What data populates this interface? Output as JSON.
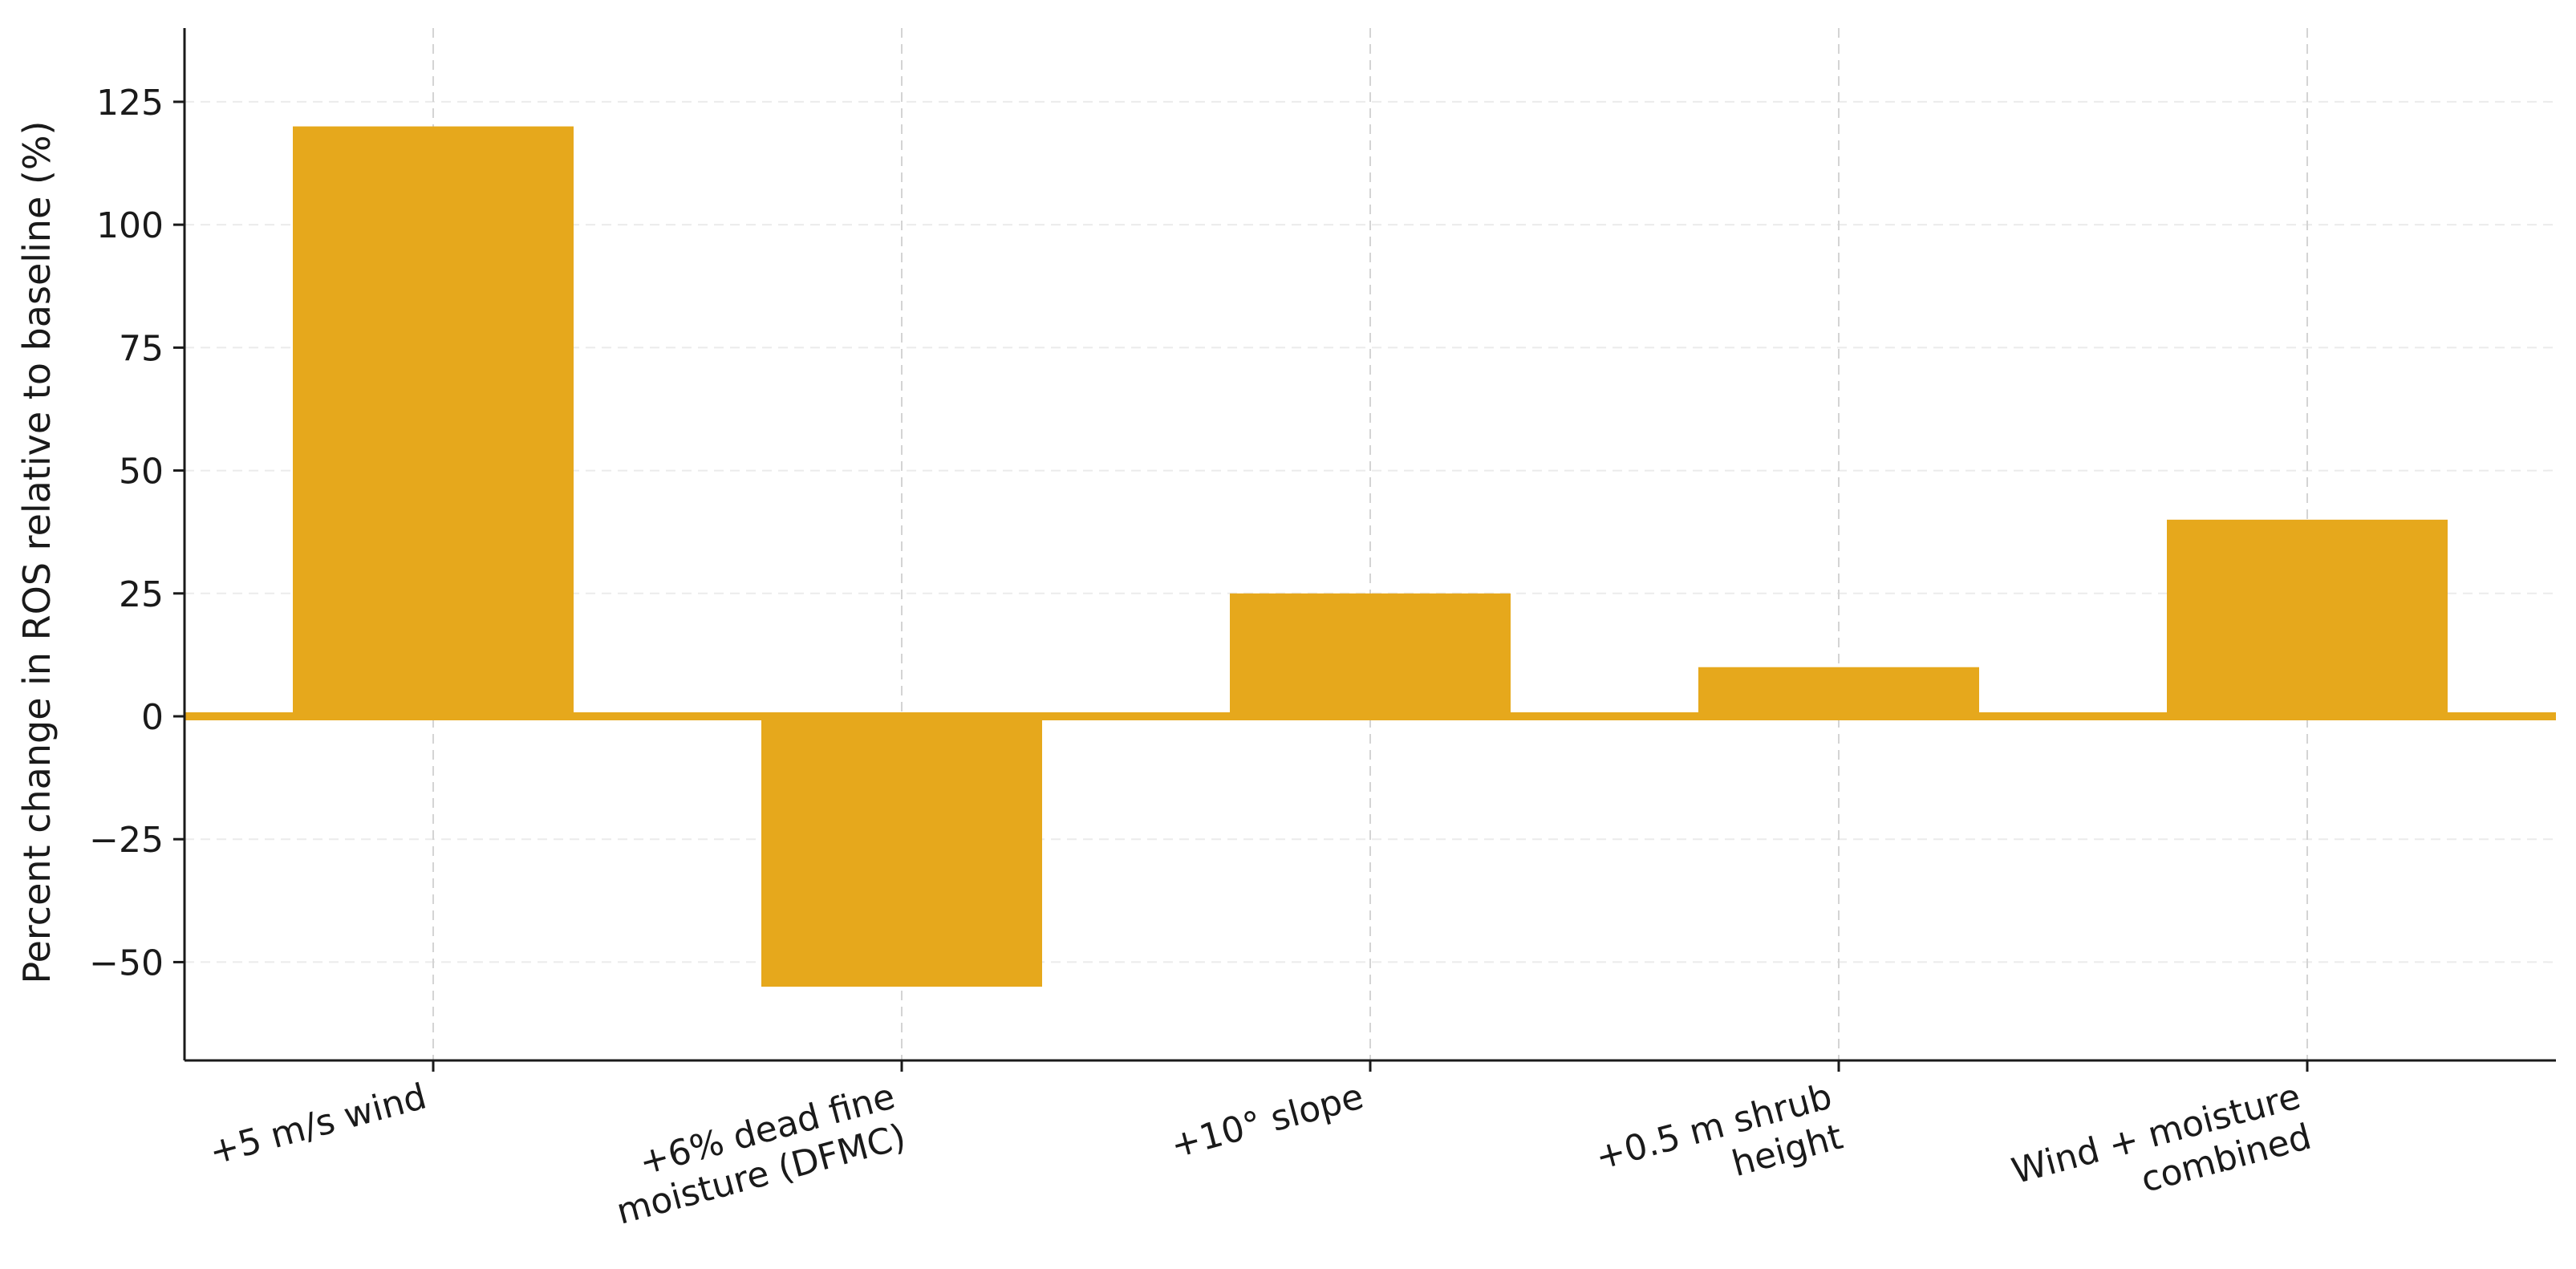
{
  "chart_data": {
    "type": "bar",
    "title": "",
    "xlabel": "",
    "ylabel": "Percent change in ROS relative to baseline (%)",
    "categories": [
      [
        "+5 m/s wind"
      ],
      [
        "+6% dead fine",
        "moisture (DFMC)"
      ],
      [
        "+10° slope"
      ],
      [
        "+0.5 m shrub",
        "height"
      ],
      [
        "Wind + moisture",
        "combined"
      ]
    ],
    "values": [
      120,
      -55,
      25,
      10,
      40
    ],
    "baseline_value": 0,
    "ylim": [
      -70,
      140
    ],
    "yticks": [
      -50,
      -25,
      0,
      25,
      50,
      75,
      100,
      125
    ],
    "ytick_labels": [
      "−50",
      "−25",
      "0",
      "25",
      "50",
      "75",
      "100",
      "125"
    ],
    "grid": true,
    "legend": "none",
    "colors": {
      "bar": "#E6A81C",
      "grid": "#d4d4d4",
      "axis": "#1a1a1a"
    }
  }
}
